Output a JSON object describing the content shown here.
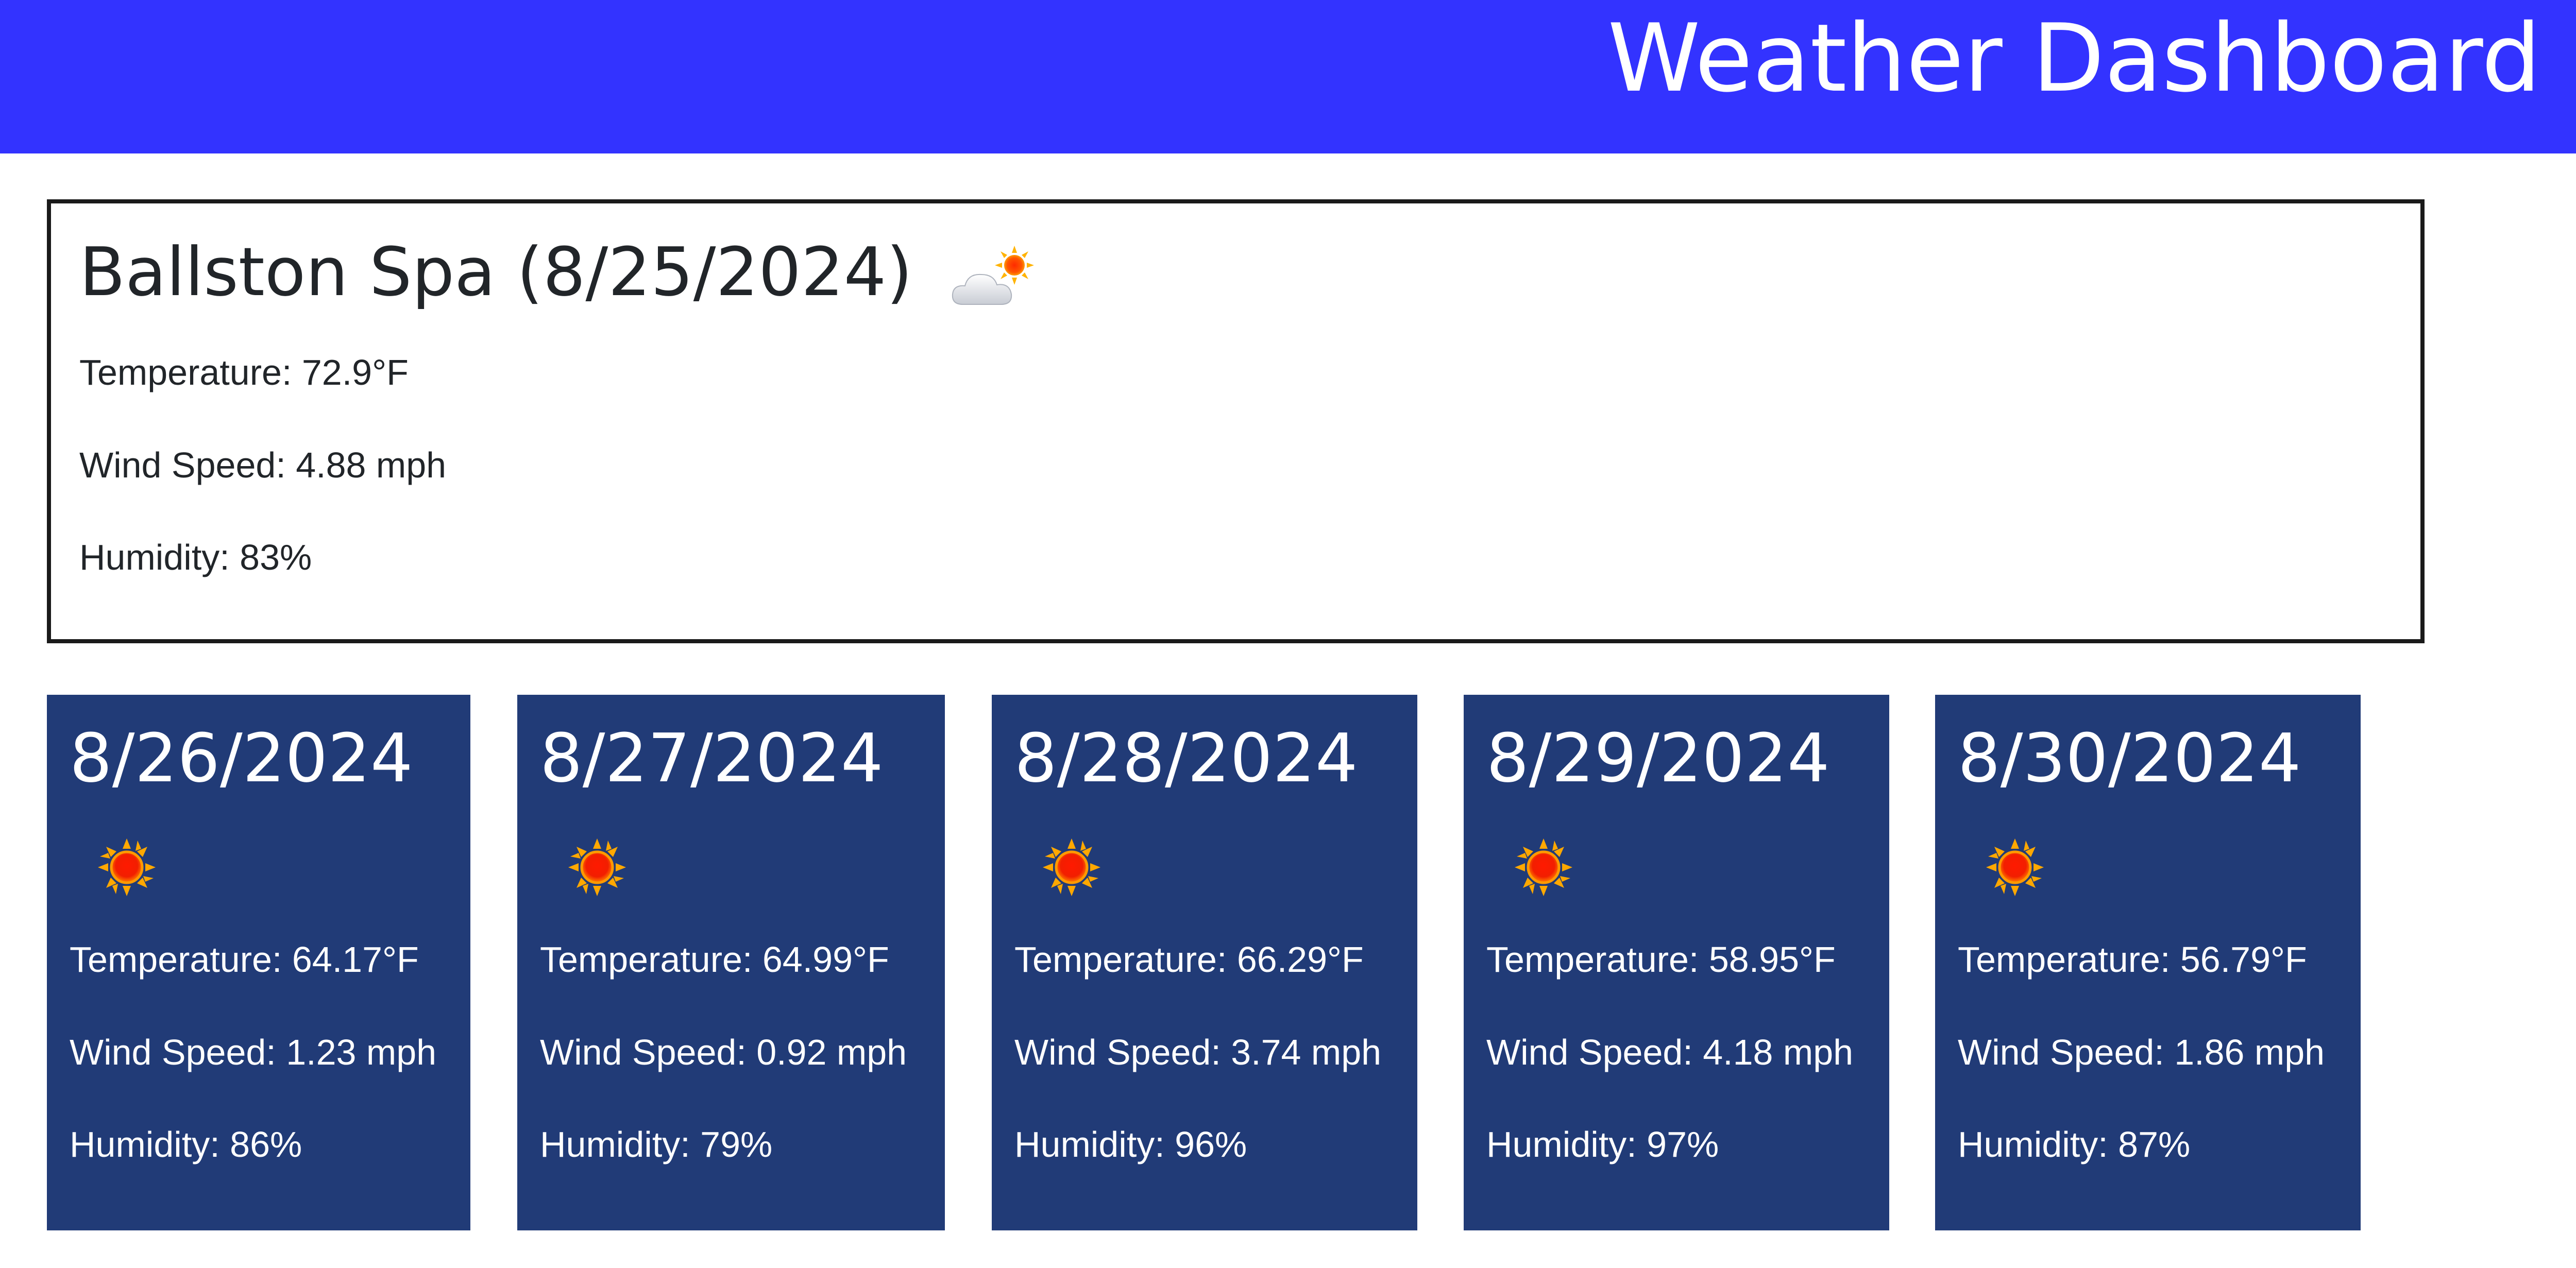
{
  "header": {
    "title": "Weather Dashboard"
  },
  "current": {
    "heading": "Ballston Spa (8/25/2024)",
    "icon": "cloud-sun-icon",
    "temperature": "Temperature: 72.9°F",
    "wind": "Wind Speed: 4.88 mph",
    "humidity": "Humidity: 83%"
  },
  "forecast": [
    {
      "date": "8/26/2024",
      "icon": "sun-icon",
      "temperature": "Temperature: 64.17°F",
      "wind": "Wind Speed: 1.23 mph",
      "humidity": "Humidity: 86%"
    },
    {
      "date": "8/27/2024",
      "icon": "sun-icon",
      "temperature": "Temperature: 64.99°F",
      "wind": "Wind Speed: 0.92 mph",
      "humidity": "Humidity: 79%"
    },
    {
      "date": "8/28/2024",
      "icon": "sun-icon",
      "temperature": "Temperature: 66.29°F",
      "wind": "Wind Speed: 3.74 mph",
      "humidity": "Humidity: 96%"
    },
    {
      "date": "8/29/2024",
      "icon": "sun-icon",
      "temperature": "Temperature: 58.95°F",
      "wind": "Wind Speed: 4.18 mph",
      "humidity": "Humidity: 97%"
    },
    {
      "date": "8/30/2024",
      "icon": "sun-icon",
      "temperature": "Temperature: 56.79°F",
      "wind": "Wind Speed: 1.86 mph",
      "humidity": "Humidity: 87%"
    }
  ],
  "colors": {
    "header_bg": "#3333ff",
    "card_bg": "#213b77",
    "text": "#212529"
  }
}
